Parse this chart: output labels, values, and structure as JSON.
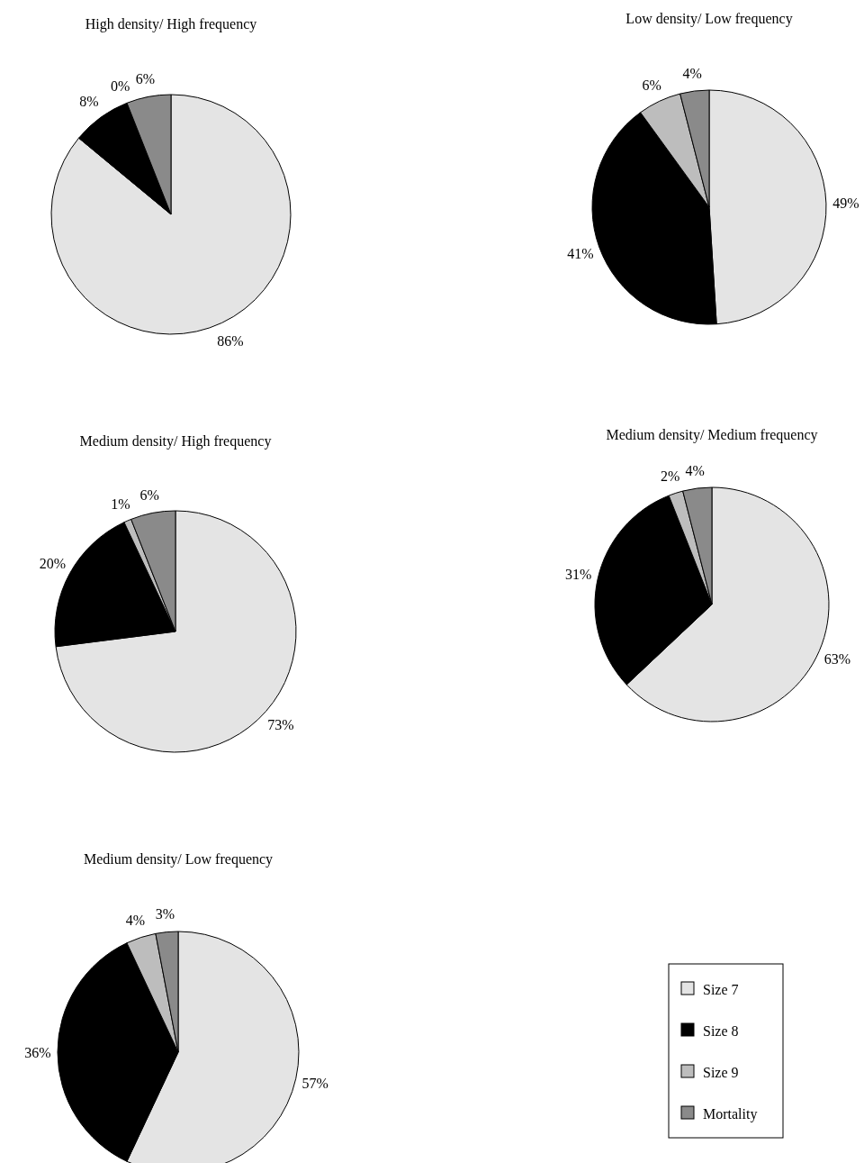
{
  "chart_data": [
    {
      "type": "pie",
      "title": "High density/ High frequency",
      "categories": [
        null,
        null,
        null,
        null
      ],
      "values": [
        86,
        8,
        0,
        6
      ],
      "value_labels": [
        "86%",
        "8%",
        "0%",
        "6%"
      ],
      "colors": [
        "#e4e4e4",
        "#000000",
        "#bdbdbd",
        "#8a8a8a"
      ]
    },
    {
      "type": "pie",
      "title": "Low density/ Low frequency",
      "categories": [
        null,
        null,
        null,
        null
      ],
      "values": [
        49,
        41,
        6,
        4
      ],
      "value_labels": [
        "49%",
        "41%",
        "6%",
        "4%"
      ],
      "colors": [
        "#e4e4e4",
        "#000000",
        "#bdbdbd",
        "#8a8a8a"
      ]
    },
    {
      "type": "pie",
      "title": "Medium density/ High frequency",
      "categories": [
        null,
        null,
        null,
        null
      ],
      "values": [
        73,
        20,
        1,
        6
      ],
      "value_labels": [
        "73%",
        "20%",
        "1%",
        "6%"
      ],
      "colors": [
        "#e4e4e4",
        "#000000",
        "#bdbdbd",
        "#8a8a8a"
      ]
    },
    {
      "type": "pie",
      "title": "Medium density/ Medium frequency",
      "categories": [
        null,
        null,
        null,
        null
      ],
      "values": [
        63,
        31,
        2,
        4
      ],
      "value_labels": [
        "63%",
        "31%",
        "2%",
        "4%"
      ],
      "colors": [
        "#e4e4e4",
        "#000000",
        "#bdbdbd",
        "#8a8a8a"
      ]
    },
    {
      "type": "pie",
      "title": "Medium density/ Low frequency",
      "categories": [
        "Size 7",
        "Size 8",
        "Size 9",
        "Mortality"
      ],
      "values": [
        57,
        36,
        4,
        3
      ],
      "value_labels": [
        "57%",
        "36%",
        "4%",
        "3%"
      ],
      "colors": [
        "#e4e4e4",
        "#000000",
        "#bdbdbd",
        "#8a8a8a"
      ],
      "legend": "right"
    }
  ]
}
